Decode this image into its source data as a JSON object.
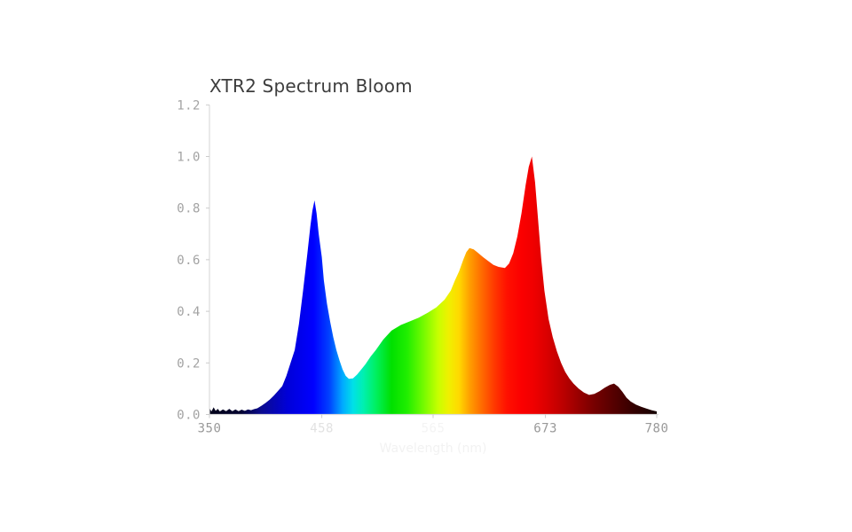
{
  "window": {
    "background": "#ffffff"
  },
  "chart_data": {
    "type": "area",
    "title": "XTR2 Spectrum Bloom",
    "xlabel": "Wavelength (nm)",
    "ylabel": "",
    "xlim": [
      350,
      780
    ],
    "ylim": [
      0,
      1.2
    ],
    "grid": false,
    "legend": null,
    "xticks": [
      {
        "value": 350,
        "label": "350",
        "color": "#999999"
      },
      {
        "value": 458,
        "label": "458",
        "color": "#e2e2e2"
      },
      {
        "value": 565,
        "label": "565",
        "color": "#f4f4f4"
      },
      {
        "value": 673,
        "label": "673",
        "color": "#999999"
      },
      {
        "value": 780,
        "label": "780",
        "color": "#999999"
      }
    ],
    "yticks": [
      {
        "value": 0.0,
        "label": "0.0"
      },
      {
        "value": 0.2,
        "label": "0.2"
      },
      {
        "value": 0.4,
        "label": "0.4"
      },
      {
        "value": 0.6,
        "label": "0.6"
      },
      {
        "value": 0.8,
        "label": "0.8"
      },
      {
        "value": 1.0,
        "label": "1.0"
      },
      {
        "value": 1.2,
        "label": "1.2"
      }
    ],
    "style": {
      "axis_color": "#dcdcdc",
      "tick_mark_color": "#cccccc",
      "ytick_label_color": "#a3a3a3",
      "title_color": "#3d3d3d",
      "xlabel_color": "#f2f2f2",
      "background": "#ffffff"
    },
    "gradient_stops": [
      {
        "nm": 350,
        "color": "#02021a"
      },
      {
        "nm": 380,
        "color": "#020230"
      },
      {
        "nm": 400,
        "color": "#0b0b8f"
      },
      {
        "nm": 425,
        "color": "#0000d8"
      },
      {
        "nm": 450,
        "color": "#0000ff"
      },
      {
        "nm": 465,
        "color": "#0040ff"
      },
      {
        "nm": 478,
        "color": "#00aaff"
      },
      {
        "nm": 488,
        "color": "#00e0e8"
      },
      {
        "nm": 498,
        "color": "#00f0b0"
      },
      {
        "nm": 510,
        "color": "#00f060"
      },
      {
        "nm": 525,
        "color": "#00e000"
      },
      {
        "nm": 540,
        "color": "#20ee00"
      },
      {
        "nm": 555,
        "color": "#70fa00"
      },
      {
        "nm": 570,
        "color": "#c8ff00"
      },
      {
        "nm": 580,
        "color": "#f0f000"
      },
      {
        "nm": 590,
        "color": "#ffd800"
      },
      {
        "nm": 600,
        "color": "#ffa000"
      },
      {
        "nm": 612,
        "color": "#ff6a00"
      },
      {
        "nm": 624,
        "color": "#ff3800"
      },
      {
        "nm": 636,
        "color": "#ff1000"
      },
      {
        "nm": 650,
        "color": "#fb0000"
      },
      {
        "nm": 662,
        "color": "#ef0000"
      },
      {
        "nm": 675,
        "color": "#d90000"
      },
      {
        "nm": 690,
        "color": "#bb0000"
      },
      {
        "nm": 705,
        "color": "#980000"
      },
      {
        "nm": 720,
        "color": "#760000"
      },
      {
        "nm": 740,
        "color": "#530000"
      },
      {
        "nm": 760,
        "color": "#300000"
      },
      {
        "nm": 780,
        "color": "#150000"
      }
    ],
    "points": [
      [
        350,
        0.025
      ],
      [
        352,
        0.012
      ],
      [
        354,
        0.028
      ],
      [
        356,
        0.014
      ],
      [
        358,
        0.022
      ],
      [
        360,
        0.012
      ],
      [
        363,
        0.02
      ],
      [
        366,
        0.013
      ],
      [
        369,
        0.022
      ],
      [
        372,
        0.013
      ],
      [
        375,
        0.02
      ],
      [
        378,
        0.013
      ],
      [
        381,
        0.019
      ],
      [
        384,
        0.014
      ],
      [
        387,
        0.02
      ],
      [
        390,
        0.017
      ],
      [
        393,
        0.021
      ],
      [
        396,
        0.024
      ],
      [
        400,
        0.034
      ],
      [
        404,
        0.045
      ],
      [
        408,
        0.058
      ],
      [
        412,
        0.074
      ],
      [
        416,
        0.092
      ],
      [
        420,
        0.11
      ],
      [
        424,
        0.15
      ],
      [
        428,
        0.2
      ],
      [
        432,
        0.25
      ],
      [
        436,
        0.35
      ],
      [
        440,
        0.48
      ],
      [
        444,
        0.62
      ],
      [
        447,
        0.73
      ],
      [
        449,
        0.79
      ],
      [
        451,
        0.83
      ],
      [
        453,
        0.78
      ],
      [
        455,
        0.7
      ],
      [
        458,
        0.61
      ],
      [
        460,
        0.52
      ],
      [
        463,
        0.43
      ],
      [
        466,
        0.36
      ],
      [
        469,
        0.3
      ],
      [
        472,
        0.25
      ],
      [
        475,
        0.21
      ],
      [
        478,
        0.175
      ],
      [
        481,
        0.15
      ],
      [
        484,
        0.138
      ],
      [
        488,
        0.14
      ],
      [
        492,
        0.155
      ],
      [
        496,
        0.175
      ],
      [
        500,
        0.195
      ],
      [
        505,
        0.225
      ],
      [
        510,
        0.25
      ],
      [
        517,
        0.29
      ],
      [
        525,
        0.325
      ],
      [
        534,
        0.347
      ],
      [
        542,
        0.36
      ],
      [
        551,
        0.375
      ],
      [
        560,
        0.395
      ],
      [
        568,
        0.415
      ],
      [
        576,
        0.445
      ],
      [
        582,
        0.48
      ],
      [
        586,
        0.52
      ],
      [
        590,
        0.555
      ],
      [
        594,
        0.6
      ],
      [
        597,
        0.63
      ],
      [
        600,
        0.645
      ],
      [
        604,
        0.64
      ],
      [
        608,
        0.627
      ],
      [
        613,
        0.61
      ],
      [
        618,
        0.595
      ],
      [
        623,
        0.58
      ],
      [
        628,
        0.572
      ],
      [
        634,
        0.568
      ],
      [
        638,
        0.585
      ],
      [
        642,
        0.625
      ],
      [
        646,
        0.69
      ],
      [
        650,
        0.78
      ],
      [
        654,
        0.89
      ],
      [
        657,
        0.96
      ],
      [
        660,
        1.0
      ],
      [
        663,
        0.9
      ],
      [
        666,
        0.75
      ],
      [
        669,
        0.6
      ],
      [
        672,
        0.48
      ],
      [
        676,
        0.37
      ],
      [
        680,
        0.3
      ],
      [
        684,
        0.245
      ],
      [
        688,
        0.2
      ],
      [
        692,
        0.165
      ],
      [
        696,
        0.14
      ],
      [
        700,
        0.12
      ],
      [
        705,
        0.1
      ],
      [
        710,
        0.085
      ],
      [
        715,
        0.076
      ],
      [
        720,
        0.08
      ],
      [
        725,
        0.09
      ],
      [
        730,
        0.104
      ],
      [
        735,
        0.115
      ],
      [
        739,
        0.12
      ],
      [
        743,
        0.108
      ],
      [
        747,
        0.088
      ],
      [
        751,
        0.065
      ],
      [
        755,
        0.05
      ],
      [
        760,
        0.038
      ],
      [
        765,
        0.03
      ],
      [
        770,
        0.023
      ],
      [
        775,
        0.017
      ],
      [
        780,
        0.012
      ]
    ]
  }
}
